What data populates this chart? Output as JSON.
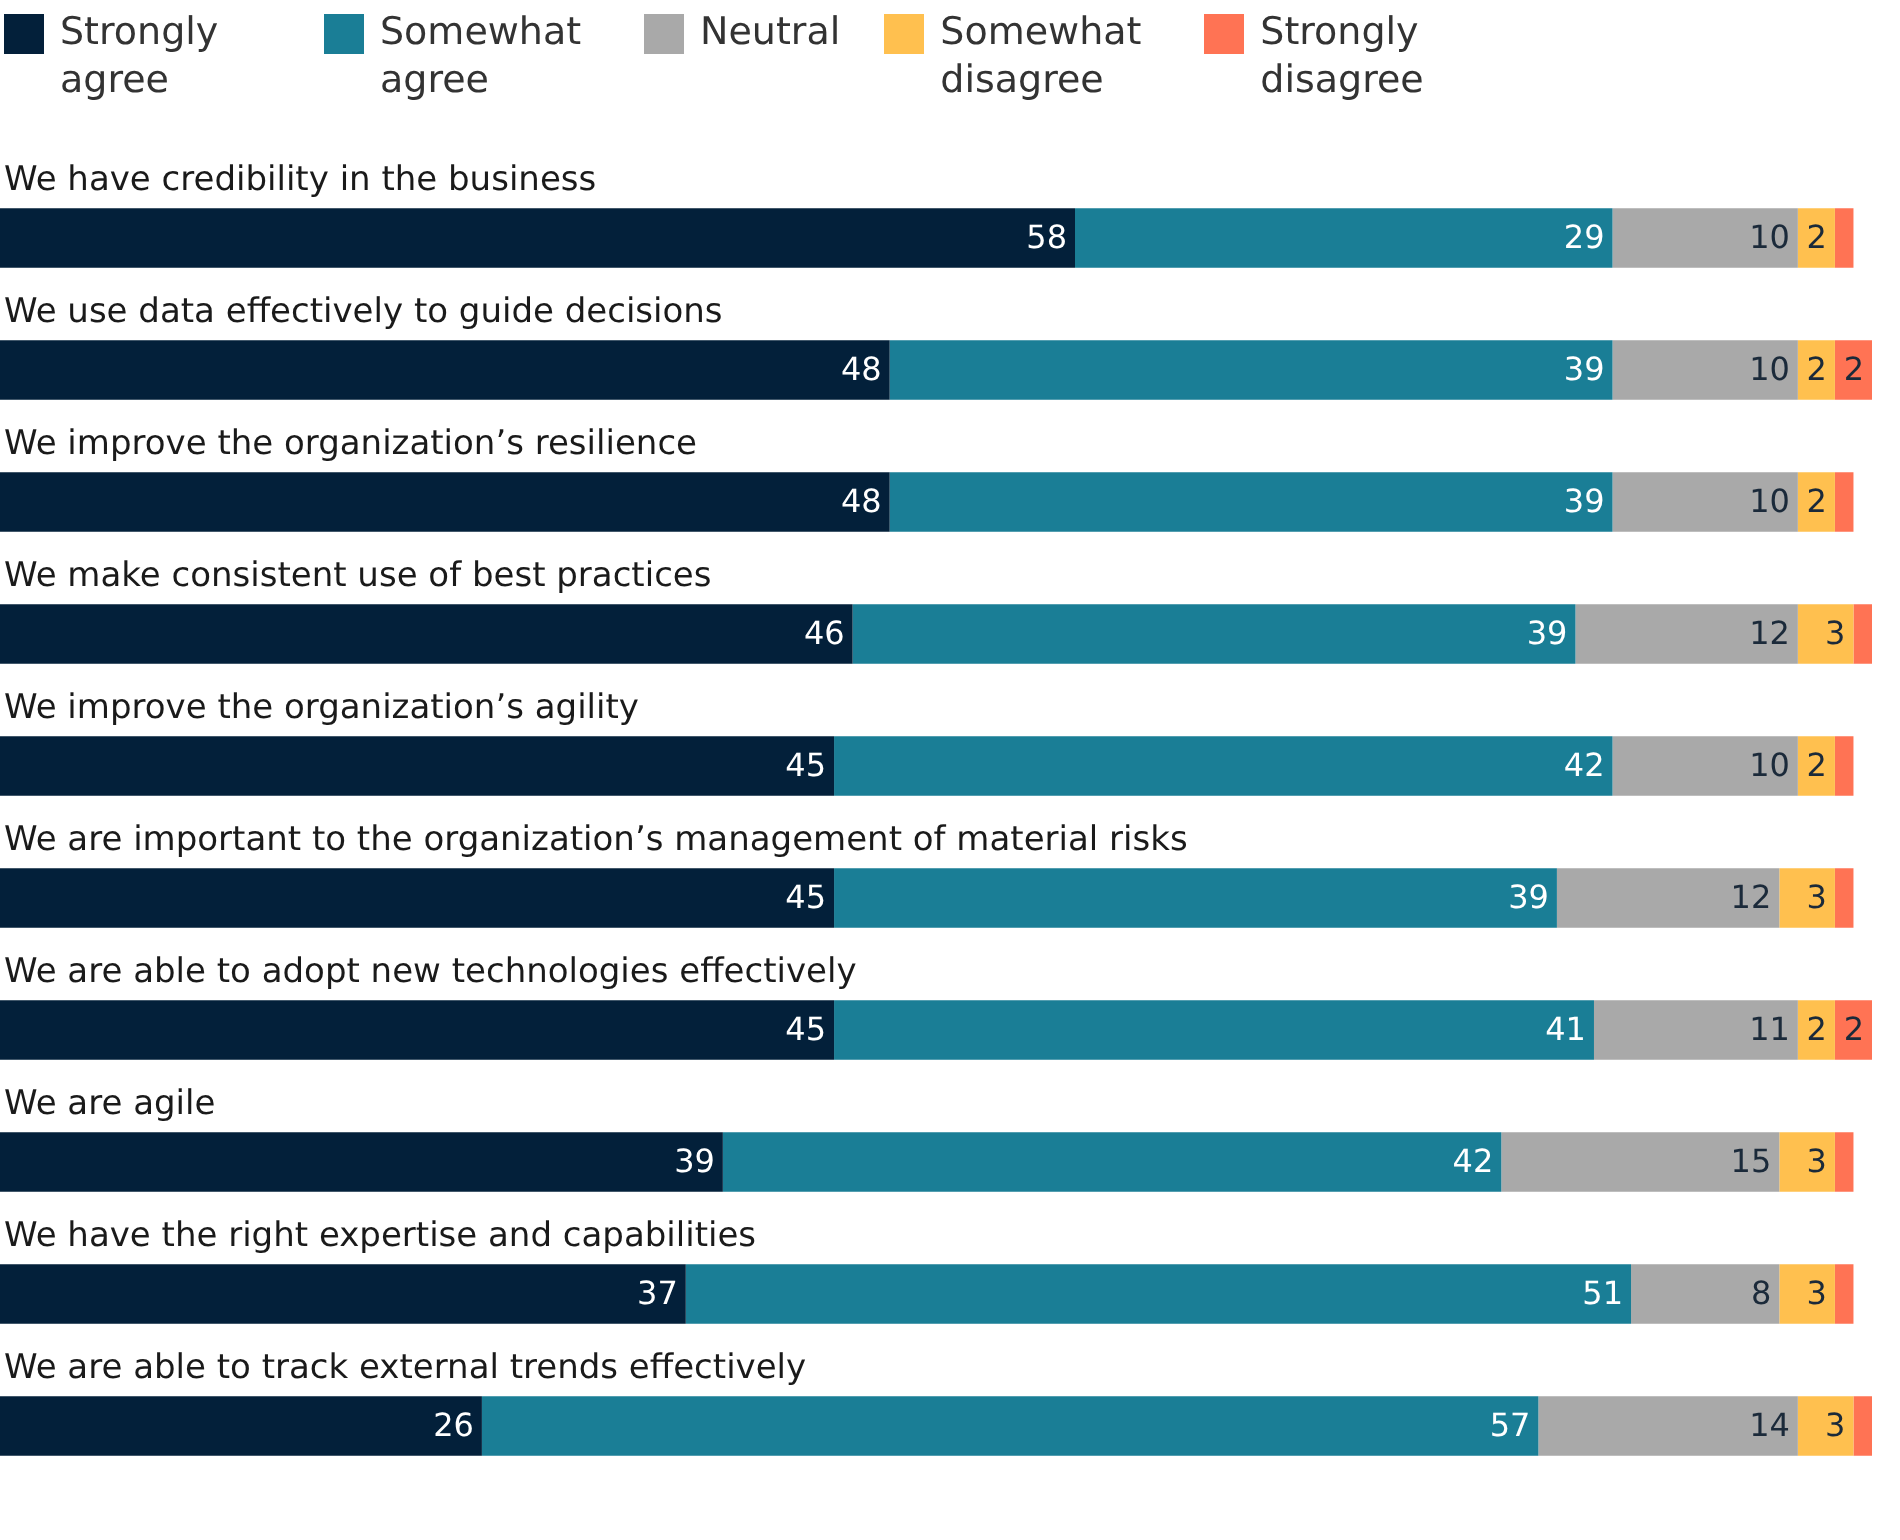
{
  "chart_data": {
    "type": "bar",
    "orientation": "horizontal",
    "stacked": true,
    "legend": "top left",
    "xlim": [
      0,
      101
    ],
    "tick_labels": false,
    "categories": [
      "We have credibility in the business",
      "We use data effectively to guide decisions",
      "We improve the organization’s resilience",
      "We make consistent use of best practices",
      "We improve the organization’s agility",
      "We are important to the organization’s management of material risks",
      "We are able to adopt new technologies effectively",
      "We are agile",
      "We have the right expertise and capabilities",
      "We are able to track external trends effectively"
    ],
    "series": [
      {
        "name": "Strongly agree",
        "color": "#03203a",
        "values": [
          58,
          48,
          48,
          46,
          45,
          45,
          45,
          39,
          37,
          26
        ],
        "value_labels": [
          "58",
          "48",
          "48",
          "46",
          "45",
          "45",
          "45",
          "39",
          "37",
          "26"
        ]
      },
      {
        "name": "Somewhat agree",
        "color": "#1a7e96",
        "values": [
          29,
          39,
          39,
          39,
          42,
          39,
          41,
          42,
          51,
          57
        ],
        "value_labels": [
          "29",
          "39",
          "39",
          "39",
          "42",
          "39",
          "41",
          "42",
          "51",
          "57"
        ]
      },
      {
        "name": "Neutral",
        "color": "#a9a9a9",
        "values": [
          10,
          10,
          10,
          12,
          10,
          12,
          11,
          15,
          8,
          14
        ],
        "value_labels": [
          "10",
          "10",
          "10",
          "12",
          "10",
          "12",
          "11",
          "15",
          "8",
          "14"
        ]
      },
      {
        "name": "Somewhat disagree",
        "color": "#ffc04f",
        "values": [
          2,
          2,
          2,
          3,
          2,
          3,
          2,
          3,
          3,
          3
        ],
        "value_labels": [
          "2",
          "2",
          "2",
          "3",
          "2",
          "3",
          "2",
          "3",
          "3",
          "3"
        ]
      },
      {
        "name": "Strongly disagree",
        "color": "#ff7354",
        "values": [
          1,
          2,
          1,
          1,
          1,
          1,
          2,
          1,
          1,
          1
        ],
        "value_labels": [
          null,
          "2",
          null,
          null,
          null,
          null,
          "2",
          null,
          null,
          null
        ]
      }
    ]
  }
}
